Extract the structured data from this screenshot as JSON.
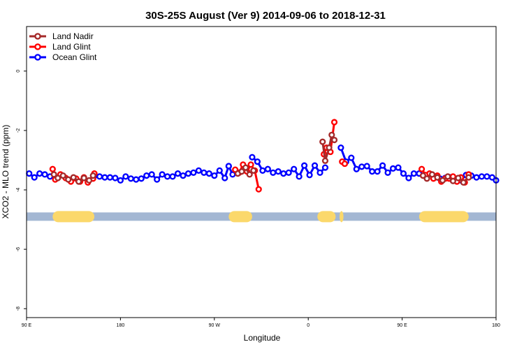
{
  "chart_data": {
    "type": "line",
    "title": "30S-25S August (Ver 9)   2014-09-06 to 2018-12-31",
    "xlabel": "Longitude",
    "ylabel": "XCO2 - MLO trend (ppm)",
    "xlim": [
      90,
      450
    ],
    "ylim": [
      -8.3,
      1.5
    ],
    "x_ticks": [
      {
        "value": 90,
        "label": "90 E"
      },
      {
        "value": 162,
        "label": "180"
      },
      {
        "value": 234,
        "label": "90 W"
      },
      {
        "value": 306,
        "label": "0"
      },
      {
        "value": 378,
        "label": "90 E"
      },
      {
        "value": 450,
        "label": "180"
      }
    ],
    "y_ticks": [
      {
        "value": 0,
        "label": "0"
      },
      {
        "value": -2,
        "label": "-2"
      },
      {
        "value": -4,
        "label": "-4"
      },
      {
        "value": -6,
        "label": "-6"
      },
      {
        "value": -8,
        "label": "-8"
      }
    ],
    "legend": {
      "position": "top-left",
      "entries": [
        {
          "name": "Land Nadir",
          "color": "#a52a2a"
        },
        {
          "name": "Land Glint",
          "color": "#ff0000"
        },
        {
          "name": "Ocean Glint",
          "color": "#0000ff"
        }
      ]
    },
    "band": {
      "y": -4.9,
      "ocean_color": "#a3b7d3",
      "land_color": "#fbd86b",
      "land_segments": [
        [
          110,
          142
        ],
        [
          245,
          263
        ],
        [
          313,
          327
        ],
        [
          330,
          333
        ],
        [
          391,
          429
        ]
      ]
    },
    "series": [
      {
        "name": "Ocean Glint",
        "color": "#0000ff",
        "segments": [
          {
            "x": [
              92,
              96,
              100,
              104,
              108
            ],
            "y": [
              -3.45,
              -3.58,
              -3.45,
              -3.48,
              -3.55
            ]
          },
          {
            "x": [
              142,
              146,
              150,
              154,
              158,
              162,
              166,
              170,
              174,
              178,
              182,
              186,
              190,
              194,
              198,
              202,
              206,
              210,
              214,
              218,
              222,
              226,
              230,
              234,
              238,
              242,
              245
            ],
            "y": [
              -3.52,
              -3.55,
              -3.58,
              -3.58,
              -3.6,
              -3.68,
              -3.55,
              -3.62,
              -3.65,
              -3.62,
              -3.52,
              -3.48,
              -3.65,
              -3.48,
              -3.55,
              -3.55,
              -3.45,
              -3.52,
              -3.45,
              -3.42,
              -3.35,
              -3.42,
              -3.45,
              -3.52,
              -3.35,
              -3.6,
              -3.2
            ]
          },
          {
            "x": [
              245,
              248
            ],
            "y": [
              -3.2,
              -3.48
            ]
          },
          {
            "x": [
              263,
              267,
              271,
              275,
              279,
              283,
              287,
              291,
              295,
              299,
              303,
              307,
              311,
              315,
              319
            ],
            "y": [
              -2.9,
              -3.05,
              -3.35,
              -3.3,
              -3.42,
              -3.38,
              -3.45,
              -3.42,
              -3.3,
              -3.55,
              -3.18,
              -3.5,
              -3.18,
              -3.42,
              -3.25
            ]
          },
          {
            "x": [
              331,
              335,
              339,
              343,
              347,
              351,
              355,
              359,
              363,
              367,
              371,
              375,
              379,
              383,
              387,
              391
            ],
            "y": [
              -2.58,
              -3.05,
              -2.92,
              -3.3,
              -3.22,
              -3.2,
              -3.38,
              -3.38,
              -3.18,
              -3.42,
              -3.28,
              -3.25,
              -3.45,
              -3.6,
              -3.45,
              -3.45
            ]
          },
          {
            "x": [
              395,
              399,
              403,
              407,
              411,
              415,
              419,
              423,
              427,
              431,
              435,
              439,
              443,
              447,
              450
            ],
            "y": [
              -3.52,
              -3.48,
              -3.55,
              -3.62,
              -3.6,
              -3.58,
              -3.65,
              -3.68,
              -3.5,
              -3.52,
              -3.58,
              -3.55,
              -3.55,
              -3.58,
              -3.68
            ]
          }
        ]
      },
      {
        "name": "Land Glint",
        "color": "#ff0000",
        "segments": [
          {
            "x": [
              110,
              112,
              116,
              120,
              124,
              128,
              131,
              134,
              137,
              141,
              142
            ],
            "y": [
              -3.3,
              -3.65,
              -3.48,
              -3.6,
              -3.72,
              -3.62,
              -3.72,
              -3.58,
              -3.75,
              -3.62,
              -3.45
            ]
          },
          {
            "x": [
              250,
              253,
              256,
              259,
              262,
              265,
              268
            ],
            "y": [
              -3.32,
              -3.42,
              -3.15,
              -3.38,
              -3.15,
              -3.35,
              -3.98
            ]
          },
          {
            "x": [
              318,
              320,
              323,
              326
            ],
            "y": [
              -2.8,
              -2.58,
              -2.72,
              -1.72
            ]
          },
          {
            "x": [
              332,
              334
            ],
            "y": [
              -3.05,
              -3.12
            ]
          },
          {
            "x": [
              393,
              396,
              399,
              402,
              405,
              408,
              411,
              414,
              417,
              420,
              423,
              426,
              429
            ],
            "y": [
              -3.3,
              -3.5,
              -3.45,
              -3.62,
              -3.52,
              -3.72,
              -3.62,
              -3.62,
              -3.55,
              -3.72,
              -3.58,
              -3.75,
              -3.48
            ]
          }
        ]
      },
      {
        "name": "Land Nadir",
        "color": "#a52a2a",
        "segments": [
          {
            "x": [
              111,
              114,
              118,
              122,
              126,
              130,
              134,
              138,
              141
            ],
            "y": [
              -3.48,
              -3.6,
              -3.52,
              -3.65,
              -3.58,
              -3.72,
              -3.6,
              -3.68,
              -3.52
            ]
          },
          {
            "x": [
              252,
              255,
              258,
              261,
              264
            ],
            "y": [
              -3.45,
              -3.38,
              -3.25,
              -3.48,
              -3.35
            ]
          },
          {
            "x": [
              317,
              319,
              322,
              324,
              326
            ],
            "y": [
              -2.38,
              -3.02,
              -2.58,
              -2.15,
              -2.32
            ]
          },
          {
            "x": [
              394,
              397,
              401,
              405,
              409,
              413,
              417,
              421,
              425,
              429
            ],
            "y": [
              -3.52,
              -3.62,
              -3.48,
              -3.58,
              -3.68,
              -3.55,
              -3.7,
              -3.6,
              -3.75,
              -3.58
            ]
          }
        ]
      }
    ]
  }
}
